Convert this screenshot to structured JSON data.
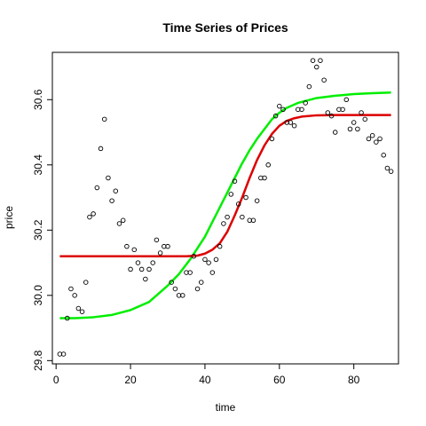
{
  "chart_data": {
    "type": "scatter",
    "title": "Time Series of Prices",
    "xlabel": "time",
    "ylabel": "price",
    "xlim": [
      -1,
      92
    ],
    "ylim": [
      29.79,
      30.745
    ],
    "xticks": [
      0,
      20,
      40,
      60,
      80
    ],
    "yticks": [
      29.8,
      30.0,
      30.2,
      30.4,
      30.6
    ],
    "ytick_labels": [
      "29.8",
      "30.0",
      "30.2",
      "30.4",
      "30.6"
    ],
    "grid": false,
    "points": {
      "x": [
        1,
        2,
        3,
        4,
        5,
        6,
        7,
        8,
        9,
        10,
        11,
        12,
        13,
        14,
        15,
        16,
        17,
        18,
        19,
        20,
        21,
        22,
        23,
        24,
        25,
        26,
        27,
        28,
        29,
        30,
        31,
        32,
        33,
        34,
        35,
        36,
        37,
        38,
        39,
        40,
        41,
        42,
        43,
        44,
        45,
        46,
        47,
        48,
        49,
        50,
        51,
        52,
        53,
        54,
        55,
        56,
        57,
        58,
        59,
        60,
        61,
        62,
        63,
        64,
        65,
        66,
        67,
        68,
        69,
        70,
        71,
        72,
        73,
        74,
        75,
        76,
        77,
        78,
        79,
        80,
        81,
        82,
        83,
        84,
        85,
        86,
        87,
        88,
        89,
        90
      ],
      "y": [
        29.82,
        29.82,
        29.93,
        30.02,
        30.0,
        29.96,
        29.95,
        30.04,
        30.24,
        30.25,
        30.33,
        30.45,
        30.54,
        30.36,
        30.29,
        30.32,
        30.22,
        30.23,
        30.15,
        30.08,
        30.14,
        30.1,
        30.08,
        30.05,
        30.08,
        30.1,
        30.17,
        30.13,
        30.15,
        30.15,
        30.04,
        30.02,
        30.0,
        30.0,
        30.07,
        30.07,
        30.12,
        30.02,
        30.04,
        30.11,
        30.1,
        30.07,
        30.11,
        30.15,
        30.22,
        30.24,
        30.31,
        30.35,
        30.28,
        30.24,
        30.3,
        30.23,
        30.23,
        30.29,
        30.36,
        30.36,
        30.4,
        30.48,
        30.55,
        30.58,
        30.57,
        30.53,
        30.53,
        30.52,
        30.57,
        30.57,
        30.59,
        30.64,
        30.72,
        30.7,
        30.72,
        30.66,
        30.56,
        30.55,
        30.5,
        30.57,
        30.57,
        30.6,
        30.51,
        30.53,
        30.51,
        30.56,
        30.54,
        30.48,
        30.49,
        30.47,
        30.48,
        30.43,
        30.39,
        30.38
      ]
    },
    "series": [
      {
        "color": "#00ee00",
        "x": [
          1,
          5,
          10,
          15,
          20,
          25,
          30,
          33,
          36,
          38,
          40,
          42,
          44,
          46,
          48,
          50,
          52,
          54,
          56,
          58,
          60,
          62,
          65,
          70,
          75,
          80,
          85,
          90
        ],
        "y": [
          29.93,
          29.93,
          29.933,
          29.94,
          29.955,
          29.98,
          30.03,
          30.065,
          30.11,
          30.145,
          30.18,
          30.225,
          30.27,
          30.315,
          30.36,
          30.405,
          30.445,
          30.48,
          30.51,
          30.54,
          30.56,
          30.575,
          30.59,
          30.605,
          30.612,
          30.617,
          30.62,
          30.622
        ]
      },
      {
        "color": "#dd0000",
        "x": [
          1,
          10,
          20,
          30,
          35,
          38,
          40,
          42,
          44,
          46,
          48,
          50,
          52,
          54,
          56,
          58,
          60,
          62,
          64,
          66,
          70,
          75,
          80,
          85,
          90
        ],
        "y": [
          30.12,
          30.12,
          30.12,
          30.12,
          30.12,
          30.122,
          30.128,
          30.14,
          30.16,
          30.195,
          30.245,
          30.3,
          30.36,
          30.415,
          30.46,
          30.495,
          30.52,
          30.535,
          30.543,
          30.548,
          30.552,
          30.553,
          30.553,
          30.553,
          30.553
        ]
      }
    ]
  }
}
